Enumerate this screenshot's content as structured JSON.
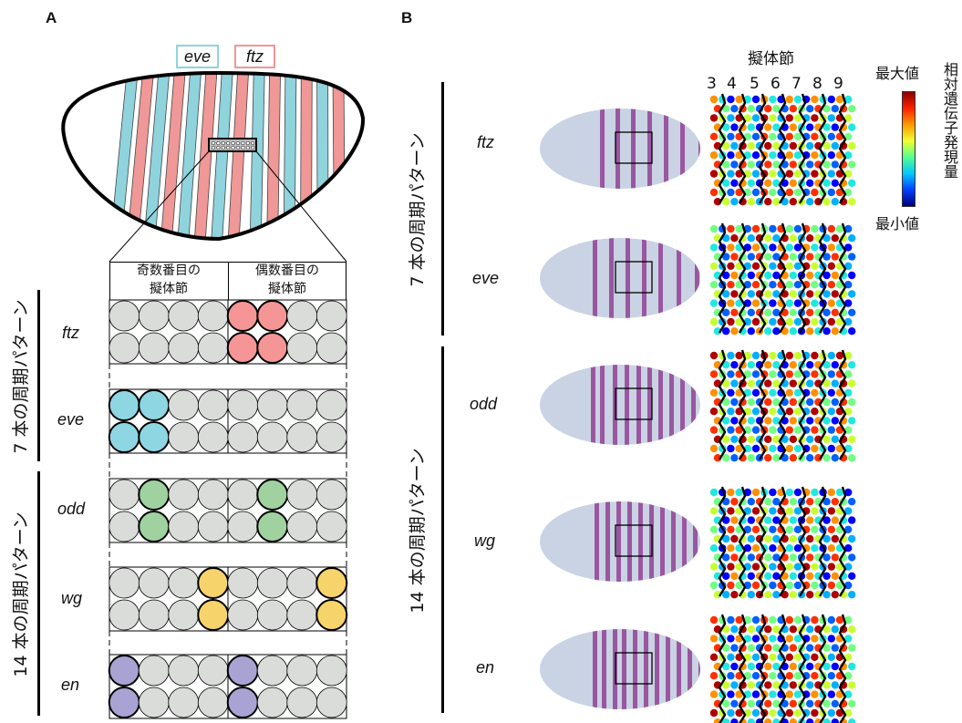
{
  "panels": {
    "a": "A",
    "b": "B"
  },
  "legend": {
    "eve": {
      "label": "eve",
      "color": "#8fd3dd"
    },
    "ftz": {
      "label": "ftz",
      "color": "#f09797"
    }
  },
  "grid_headers": {
    "odd": "奇数番目の\n擬体節",
    "even": "偶数番目の\n擬体節"
  },
  "groups": {
    "seven": "7 本の周期パターン",
    "fourteen": "14 本の周期パターン"
  },
  "genes": [
    "ftz",
    "eve",
    "odd",
    "wg",
    "en"
  ],
  "gene_colors": {
    "ftz": "#f59595",
    "eve": "#8ed6e2",
    "odd": "#9fd29f",
    "wg": "#f6d36b",
    "en": "#a9a3d3",
    "off": "#d9dcd9"
  },
  "segments": {
    "title": "擬体節",
    "numbers": [
      "3",
      "4",
      "5",
      "6",
      "7",
      "8",
      "9"
    ]
  },
  "scale": {
    "max": "最大値",
    "min": "最小値",
    "title": "相対遺伝子発現量"
  }
}
